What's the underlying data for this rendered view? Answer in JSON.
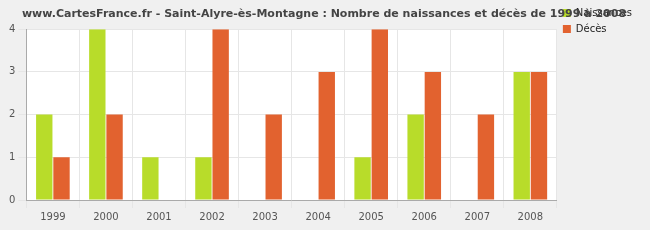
{
  "chart_data": {
    "type": "bar",
    "title": "www.CartesFrance.fr - Saint-Alyre-ès-Montagne : Nombre de naissances et décès de 1999 à 2008",
    "categories": [
      "1999",
      "2000",
      "2001",
      "2002",
      "2003",
      "2004",
      "2005",
      "2006",
      "2007",
      "2008"
    ],
    "series": [
      {
        "name": "Naissances",
        "color": "#b8dc2a",
        "values": [
          2,
          4,
          1,
          1,
          0,
          0,
          1,
          2,
          0,
          3
        ]
      },
      {
        "name": "Décès",
        "color": "#e2622f",
        "values": [
          1,
          2,
          0,
          4,
          2,
          3,
          4,
          3,
          2,
          3
        ]
      }
    ],
    "ylim": [
      0,
      4
    ],
    "yticks": [
      0,
      1,
      2,
      3,
      4
    ],
    "grid": true,
    "legend": "top-right"
  }
}
